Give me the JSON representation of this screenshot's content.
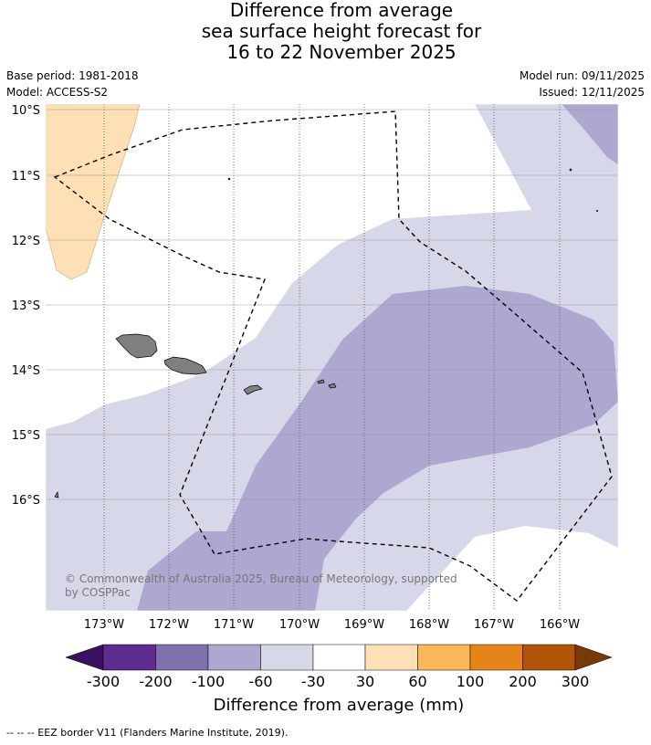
{
  "title": {
    "line1": "Difference from average",
    "line2": "sea surface height forecast for",
    "line3": "16 to 22 November 2025"
  },
  "meta": {
    "base_period": "Base period: 1981-2018",
    "model": "Model: ACCESS-S2",
    "model_run": "Model run: 09/11/2025",
    "issued": "Issued: 12/11/2025"
  },
  "map": {
    "lat_labels": [
      "10°S",
      "11°S",
      "12°S",
      "13°S",
      "14°S",
      "15°S",
      "16°S"
    ],
    "lon_labels": [
      "173°W",
      "172°W",
      "171°W",
      "170°W",
      "169°W",
      "168°W",
      "167°W",
      "166°W"
    ],
    "credit_line1": "© Commonwealth of Australia 2025, Bureau of Meteorology, supported",
    "credit_line2": "by COSPPac"
  },
  "colorbar": {
    "ticks": [
      "-300",
      "-200",
      "-100",
      "-60",
      "-30",
      "30",
      "60",
      "100",
      "200",
      "300"
    ],
    "colors": [
      "#3b0f63",
      "#5e2b8f",
      "#8270ad",
      "#aea8d1",
      "#d7d7ea",
      "#ffffff",
      "#fde0b6",
      "#f9b75c",
      "#e58418",
      "#b15408",
      "#7a3a06"
    ],
    "label": "Difference from average (mm)"
  },
  "footer": "-- -- -- EEZ border V11 (Flanders Marine Institute, 2019)."
}
